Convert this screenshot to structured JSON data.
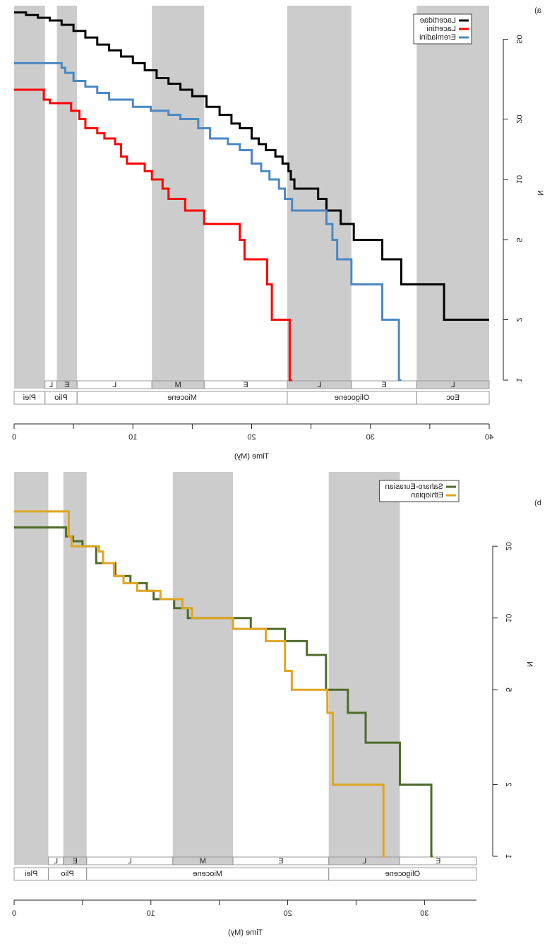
{
  "chart_data": [
    {
      "type": "step",
      "label": "a)",
      "x_label": "Time (My)",
      "y_label": "N",
      "log_y": true,
      "legend": "topleft",
      "xlim": [
        0,
        40
      ],
      "xticks": [
        0,
        10,
        20,
        30,
        40
      ],
      "xminor": [
        5,
        15,
        25,
        35
      ],
      "ylim": [
        1,
        73.5
      ],
      "yticks": [
        1,
        2,
        5,
        10,
        20,
        50
      ],
      "bands": [
        [
          0,
          2.6
        ],
        [
          3.6,
          5.3
        ],
        [
          11.6,
          16
        ],
        [
          23,
          28.4
        ],
        [
          33.9,
          40
        ]
      ],
      "subepochs": [
        {
          "label": "L",
          "start": 2.6,
          "end": 3.6
        },
        {
          "label": "E",
          "start": 3.6,
          "end": 5.3
        },
        {
          "label": "L",
          "start": 5.3,
          "end": 11.6
        },
        {
          "label": "M",
          "start": 11.6,
          "end": 16
        },
        {
          "label": "E",
          "start": 16,
          "end": 23
        },
        {
          "label": "L",
          "start": 23,
          "end": 28.4
        },
        {
          "label": "E",
          "start": 28.4,
          "end": 33.9
        },
        {
          "label": "L",
          "start": 33.9,
          "end": 40
        }
      ],
      "epochs": [
        {
          "label": "Plei",
          "start": 0,
          "end": 2.6
        },
        {
          "label": "Plio",
          "start": 2.6,
          "end": 5.3
        },
        {
          "label": "Miocene",
          "start": 5.3,
          "end": 23
        },
        {
          "label": "Oligocene",
          "start": 23,
          "end": 33.9
        },
        {
          "label": "Eoc",
          "start": 33.9,
          "end": 40
        }
      ],
      "series": [
        {
          "name": "Lacertidae",
          "color": "#000000",
          "x": [
            40,
            36.2,
            32.6,
            31,
            28.6,
            27.5,
            26.3,
            25.6,
            23.6,
            23.3,
            23.1,
            22.6,
            22,
            21.2,
            20.6,
            20,
            19,
            18.3,
            17.3,
            16.2,
            15,
            14,
            13,
            12,
            11,
            10,
            9,
            8,
            7,
            6,
            5,
            4,
            3,
            2,
            1,
            0
          ],
          "values": [
            2,
            3,
            4,
            5,
            6,
            7,
            8,
            9,
            10,
            11,
            12,
            13,
            14,
            15,
            16,
            18,
            19,
            21,
            23,
            26,
            28,
            30,
            32,
            35,
            38,
            41,
            44,
            47,
            51,
            55,
            59,
            62,
            64,
            66,
            68,
            68
          ]
        },
        {
          "name": "Lacertini",
          "color": "#ff0000",
          "x": [
            23.4,
            23.2,
            21.7,
            21.3,
            19.4,
            19,
            16,
            14.4,
            13,
            12.5,
            11.6,
            11,
            9.5,
            9,
            8.5,
            7.6,
            7,
            6,
            5.5,
            4.8,
            3,
            2.5,
            0
          ],
          "values": [
            1,
            2,
            3,
            4,
            5,
            6,
            7,
            8,
            9,
            10,
            11,
            12,
            13,
            15,
            16,
            17,
            18,
            20,
            22,
            24,
            25,
            28,
            28
          ]
        },
        {
          "name": "Eremiadini",
          "color": "#4a88c4",
          "x": [
            32.6,
            32.4,
            31,
            28.4,
            27.2,
            26.8,
            26.3,
            23.4,
            22.8,
            22.3,
            21.5,
            20.8,
            20,
            19,
            18,
            16.5,
            15.5,
            14,
            13,
            11.5,
            10,
            8,
            7,
            6,
            5,
            4.3,
            4,
            0
          ],
          "values": [
            1,
            2,
            3,
            4,
            5,
            6,
            7,
            8,
            9,
            10,
            11,
            12,
            14,
            15,
            16,
            18,
            20,
            21,
            22,
            23,
            25,
            27,
            29,
            31,
            34,
            36,
            38,
            38
          ]
        }
      ]
    },
    {
      "type": "step",
      "label": "b)",
      "x_label": "Time (My)",
      "y_label": "N",
      "log_y": true,
      "legend": "topleft",
      "xlim": [
        0,
        33.8
      ],
      "xticks": [
        0,
        10,
        20,
        30
      ],
      "xminor": [
        5,
        15,
        25
      ],
      "ylim": [
        1,
        41
      ],
      "yticks": [
        1,
        2,
        5,
        10,
        20
      ],
      "bands": [
        [
          0,
          2.5
        ],
        [
          3.6,
          5.3
        ],
        [
          11.6,
          16
        ],
        [
          23,
          28.2
        ]
      ],
      "subepochs": [
        {
          "label": "L",
          "start": 2.5,
          "end": 3.6
        },
        {
          "label": "E",
          "start": 3.6,
          "end": 5.3
        },
        {
          "label": "L",
          "start": 5.3,
          "end": 11.6
        },
        {
          "label": "M",
          "start": 11.6,
          "end": 16
        },
        {
          "label": "E",
          "start": 16,
          "end": 23
        },
        {
          "label": "L",
          "start": 23,
          "end": 28.2
        },
        {
          "label": "E",
          "start": 28.2,
          "end": 33.8
        }
      ],
      "epochs": [
        {
          "label": "Plei",
          "start": 0,
          "end": 2.5
        },
        {
          "label": "Plio",
          "start": 2.5,
          "end": 5.3
        },
        {
          "label": "Miocene",
          "start": 5.3,
          "end": 23
        },
        {
          "label": "Oligocene",
          "start": 23,
          "end": 33.8
        }
      ],
      "series": [
        {
          "name": "Saharo-Eurasian",
          "color": "#4e6b2a",
          "x": [
            30.6,
            30.5,
            28.2,
            25.7,
            24.4,
            22.8,
            21.4,
            19.8,
            17.3,
            12.7,
            11.7,
            10.2,
            9.7,
            8.5,
            7.4,
            6,
            5,
            4.3,
            3.8,
            0
          ],
          "values": [
            1,
            2,
            3,
            4,
            5,
            7,
            8,
            9,
            10,
            11,
            12,
            13,
            14,
            15,
            17,
            20,
            21,
            22,
            24,
            24
          ]
        },
        {
          "name": "Ethiopian",
          "color": "#e0a520",
          "x": [
            27.1,
            27,
            23.3,
            22.9,
            20.3,
            19.8,
            18.4,
            16,
            13,
            12.3,
            10.7,
            9,
            8,
            7.3,
            6.5,
            6.2,
            4.2,
            4,
            0
          ],
          "values": [
            1,
            2,
            4,
            5,
            6,
            8,
            9,
            10,
            11,
            12,
            13,
            14,
            15,
            17,
            19,
            20,
            22,
            28,
            28
          ]
        }
      ]
    }
  ]
}
